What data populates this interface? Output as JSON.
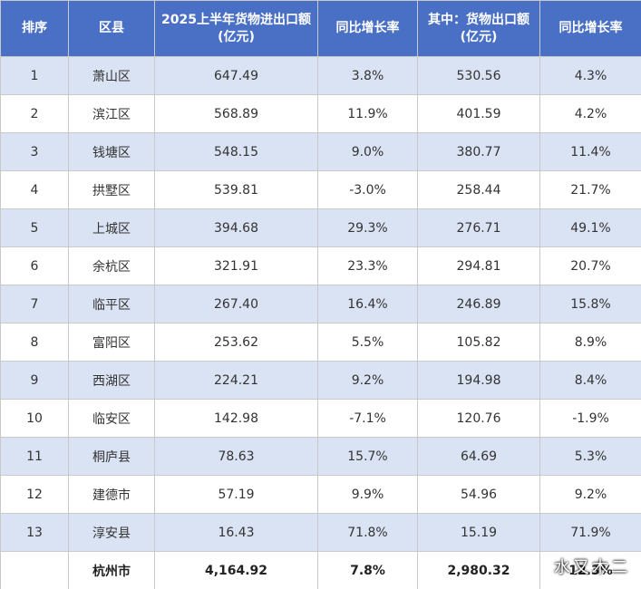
{
  "table": {
    "headers": [
      [
        "排序"
      ],
      [
        "区县"
      ],
      [
        "2025上半年货物进出口额",
        "(亿元)"
      ],
      [
        "同比增长率"
      ],
      [
        "其中：货物出口额",
        "(亿元)"
      ],
      [
        "同比增长率"
      ]
    ],
    "rows": [
      [
        "1",
        "萧山区",
        "647.49",
        "3.8%",
        "530.56",
        "4.3%"
      ],
      [
        "2",
        "滨江区",
        "568.89",
        "11.9%",
        "401.59",
        "4.2%"
      ],
      [
        "3",
        "钱塘区",
        "548.15",
        "9.0%",
        "380.77",
        "11.4%"
      ],
      [
        "4",
        "拱墅区",
        "539.81",
        "-3.0%",
        "258.44",
        "21.7%"
      ],
      [
        "5",
        "上城区",
        "394.68",
        "29.3%",
        "276.71",
        "49.1%"
      ],
      [
        "6",
        "余杭区",
        "321.91",
        "23.3%",
        "294.81",
        "20.7%"
      ],
      [
        "7",
        "临平区",
        "267.40",
        "16.4%",
        "246.89",
        "15.8%"
      ],
      [
        "8",
        "富阳区",
        "253.62",
        "5.5%",
        "105.82",
        "8.9%"
      ],
      [
        "9",
        "西湖区",
        "224.21",
        "9.2%",
        "194.98",
        "8.4%"
      ],
      [
        "10",
        "临安区",
        "142.98",
        "-7.1%",
        "120.76",
        "-1.9%"
      ],
      [
        "11",
        "桐庐县",
        "78.63",
        "15.7%",
        "64.69",
        "5.3%"
      ],
      [
        "12",
        "建德市",
        "57.19",
        "9.9%",
        "54.96",
        "9.2%"
      ],
      [
        "13",
        "淳安县",
        "16.43",
        "71.8%",
        "15.19",
        "71.9%"
      ]
    ],
    "total": [
      "杭州市",
      "4,164.92",
      "7.8%",
      "2,980.32",
      "12.3%"
    ]
  },
  "watermark": "水又木二"
}
